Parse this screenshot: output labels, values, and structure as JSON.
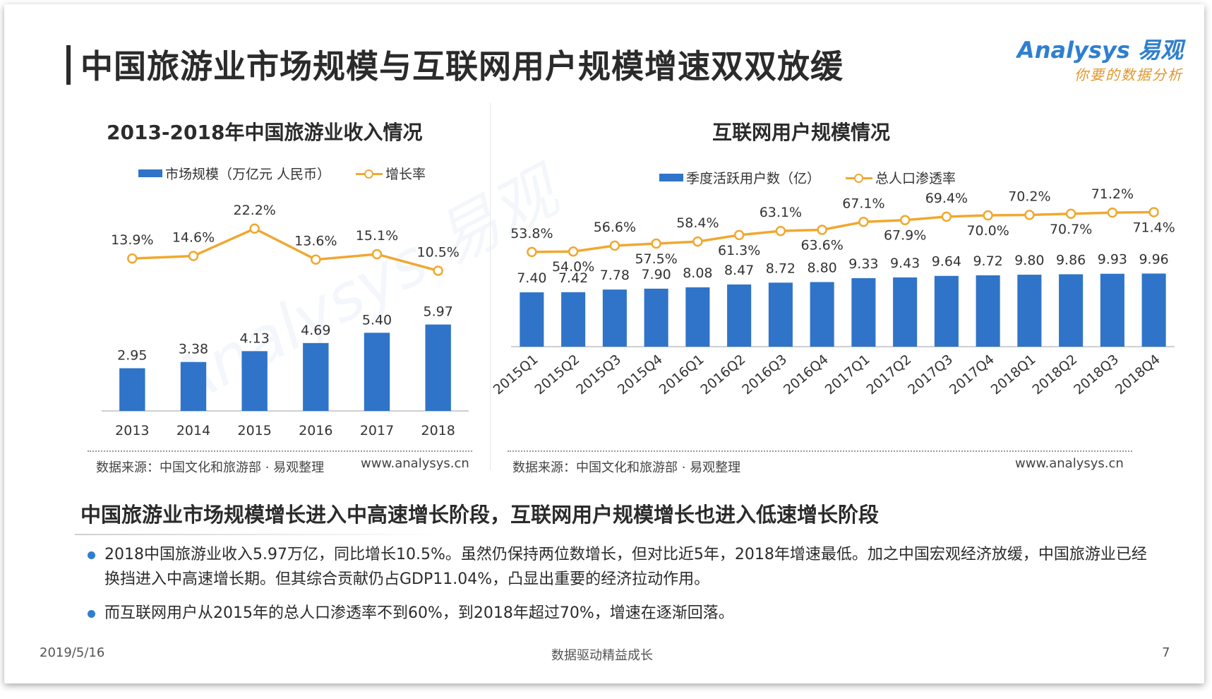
{
  "page": {
    "title": "中国旅游业市场规模与互联网用户规模增速双双放缓",
    "logo": {
      "main": "Analysys 易观",
      "sub": "你要的数据分析"
    }
  },
  "chart_data": [
    {
      "type": "bar+line",
      "title": "2013-2018年中国旅游业收入情况",
      "categories": [
        "2013",
        "2014",
        "2015",
        "2016",
        "2017",
        "2018"
      ],
      "series": [
        {
          "name": "市场规模（万亿元 人民币）",
          "type": "bar",
          "color": "#2f74c8",
          "values": [
            2.95,
            3.38,
            4.13,
            4.69,
            5.4,
            5.97
          ],
          "labels": [
            "2.95",
            "3.38",
            "4.13",
            "4.69",
            "5.40",
            "5.97"
          ]
        },
        {
          "name": "增长率",
          "type": "line",
          "color": "#f0a830",
          "values": [
            13.9,
            14.6,
            22.2,
            13.6,
            15.1,
            10.5
          ],
          "labels": [
            "13.9%",
            "14.6%",
            "22.2%",
            "13.6%",
            "15.1%",
            "10.5%"
          ]
        }
      ],
      "legend_position": "top",
      "grid": false,
      "source": "数据来源：中国文化和旅游部 · 易观整理",
      "site": "www.analysys.cn"
    },
    {
      "type": "bar+line",
      "title": "互联网用户规模情况",
      "categories": [
        "2015Q1",
        "2015Q2",
        "2015Q3",
        "2015Q4",
        "2016Q1",
        "2016Q2",
        "2016Q3",
        "2016Q4",
        "2017Q1",
        "2017Q2",
        "2017Q3",
        "2017Q4",
        "2018Q1",
        "2018Q2",
        "2018Q3",
        "2018Q4"
      ],
      "series": [
        {
          "name": "季度活跃用户数（亿）",
          "type": "bar",
          "color": "#2f74c8",
          "values": [
            7.4,
            7.42,
            7.78,
            7.9,
            8.08,
            8.47,
            8.72,
            8.8,
            9.33,
            9.43,
            9.64,
            9.72,
            9.8,
            9.86,
            9.93,
            9.96
          ],
          "labels": [
            "7.40",
            "7.42",
            "7.78",
            "7.90",
            "8.08",
            "8.47",
            "8.72",
            "8.80",
            "9.33",
            "9.43",
            "9.64",
            "9.72",
            "9.80",
            "9.86",
            "9.93",
            "9.96"
          ]
        },
        {
          "name": "总人口渗透率",
          "type": "line",
          "color": "#f0a830",
          "values": [
            53.8,
            54.0,
            56.6,
            57.5,
            58.4,
            61.3,
            63.1,
            63.6,
            67.1,
            67.9,
            69.4,
            70.0,
            70.2,
            70.7,
            71.2,
            71.4
          ],
          "labels": [
            "53.8%",
            "54.0%",
            "56.6%",
            "57.5%",
            "58.4%",
            "61.3%",
            "63.1%",
            "63.6%",
            "67.1%",
            "67.9%",
            "69.4%",
            "70.0%",
            "70.2%",
            "70.7%",
            "71.2%",
            "71.4%"
          ]
        }
      ],
      "legend_position": "top",
      "grid": false,
      "source": "数据来源：中国文化和旅游部 · 易观整理",
      "site": "www.analysys.cn"
    }
  ],
  "summary": {
    "title": "中国旅游业市场规模增长进入中高速增长阶段，互联网用户规模增长也进入低速增长阶段",
    "bullets": [
      "2018中国旅游业收入5.97万亿，同比增长10.5%。虽然仍保持两位数增长，但对比近5年，2018年增速最低。加之中国宏观经济放缓，中国旅游业已经换挡进入中高速增长期。但其综合贡献仍占GDP11.04%，凸显出重要的经济拉动作用。",
      "而互联网用户从2015年的总人口渗透率不到60%，到2018年超过70%，增速在逐渐回落。"
    ]
  },
  "footer": {
    "date": "2019/5/16",
    "center": "数据驱动精益成长",
    "page": "7"
  }
}
